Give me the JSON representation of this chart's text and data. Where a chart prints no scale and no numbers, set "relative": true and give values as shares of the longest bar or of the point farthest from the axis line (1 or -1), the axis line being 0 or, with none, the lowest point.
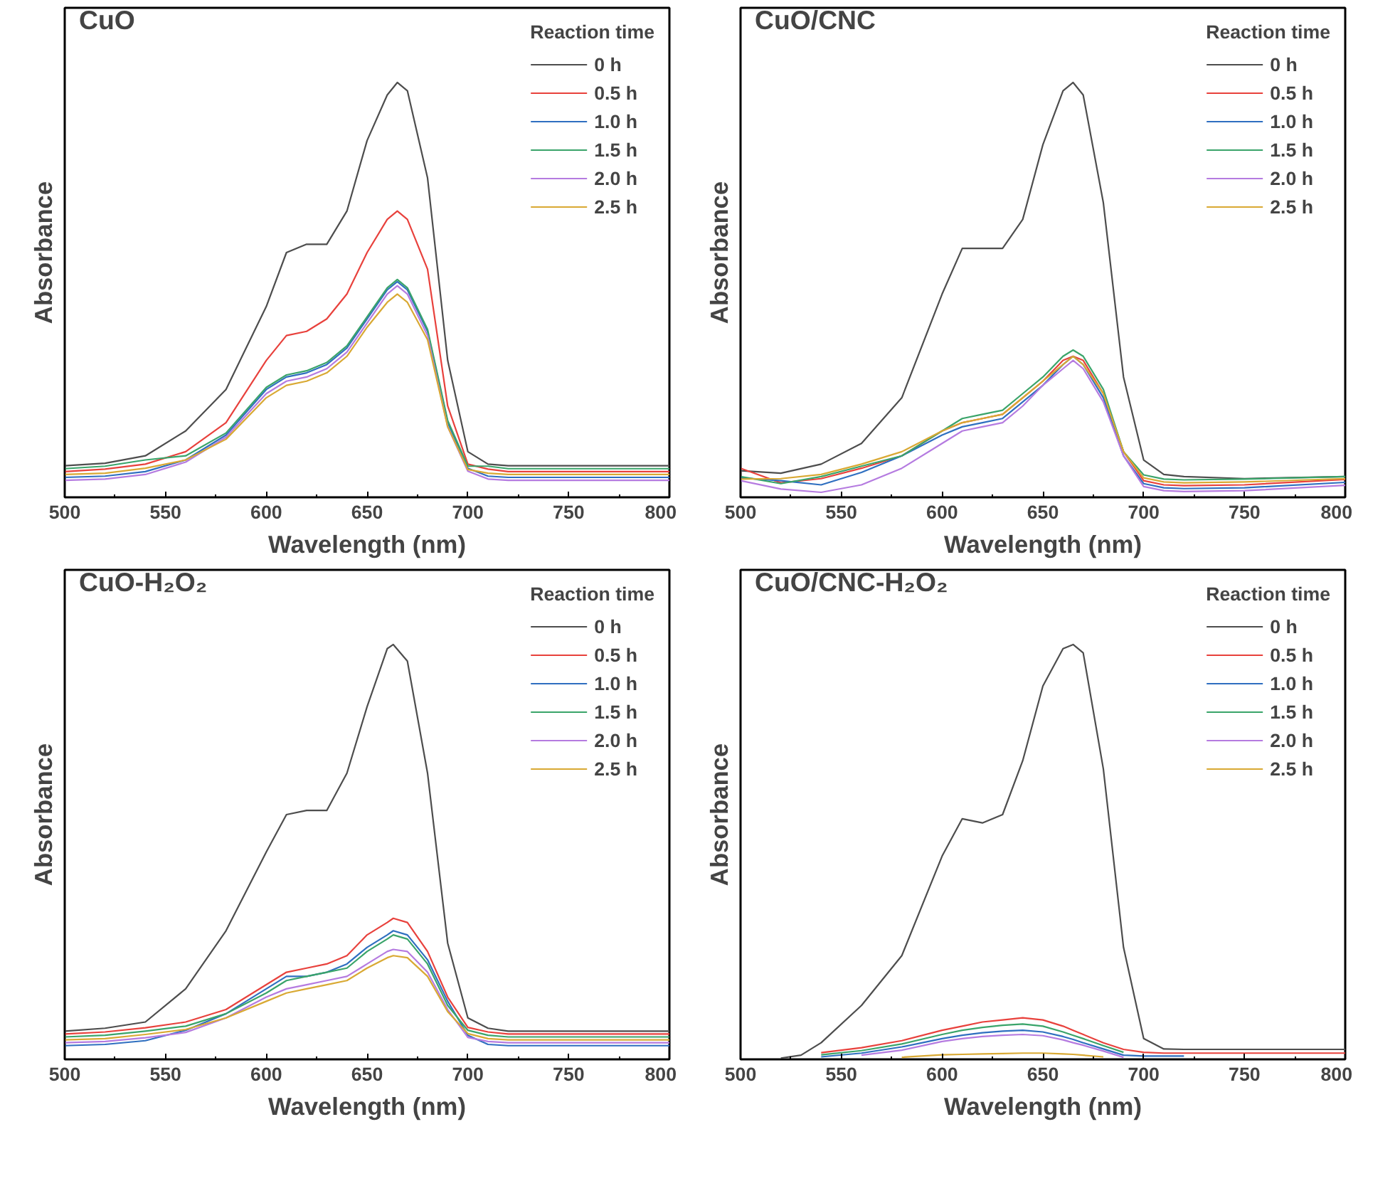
{
  "chart_data": [
    {
      "type": "line",
      "title": "CuO",
      "xlabel": "Wavelength (nm)",
      "ylabel": "Absorbance",
      "relative": true,
      "legend": "top right",
      "legend_title": "Reaction time",
      "tick_labels": "x",
      "xlim": [
        500,
        800
      ],
      "xticks": [
        500,
        550,
        600,
        650,
        700,
        750,
        800
      ],
      "x": [
        500,
        520,
        540,
        560,
        580,
        600,
        610,
        620,
        630,
        640,
        650,
        660,
        665,
        670,
        680,
        690,
        700,
        710,
        720,
        750,
        800
      ],
      "series": [
        {
          "name": "0 h",
          "color": "#4d4d4d",
          "values": [
            0.076,
            0.082,
            0.1,
            0.16,
            0.26,
            0.46,
            0.59,
            0.61,
            0.61,
            0.69,
            0.86,
            0.97,
            1.0,
            0.98,
            0.77,
            0.33,
            0.11,
            0.08,
            0.076,
            0.076,
            0.076
          ]
        },
        {
          "name": "0.5 h",
          "color": "#e8413c",
          "values": [
            0.062,
            0.068,
            0.08,
            0.11,
            0.18,
            0.33,
            0.39,
            0.4,
            0.43,
            0.49,
            0.59,
            0.67,
            0.69,
            0.67,
            0.55,
            0.22,
            0.08,
            0.068,
            0.062,
            0.062,
            0.062
          ]
        },
        {
          "name": "1.0 h",
          "color": "#2f6fc0",
          "values": [
            0.048,
            0.051,
            0.062,
            0.09,
            0.15,
            0.26,
            0.29,
            0.3,
            0.32,
            0.36,
            0.43,
            0.5,
            0.52,
            0.5,
            0.4,
            0.18,
            0.07,
            0.051,
            0.048,
            0.048,
            0.048
          ]
        },
        {
          "name": "1.5 h",
          "color": "#3aa46a",
          "values": [
            0.069,
            0.075,
            0.09,
            0.1,
            0.155,
            0.265,
            0.295,
            0.305,
            0.325,
            0.365,
            0.435,
            0.505,
            0.525,
            0.505,
            0.405,
            0.185,
            0.075,
            0.075,
            0.069,
            0.069,
            0.069
          ]
        },
        {
          "name": "2.0 h",
          "color": "#b57be0",
          "values": [
            0.041,
            0.044,
            0.055,
            0.085,
            0.145,
            0.25,
            0.28,
            0.29,
            0.31,
            0.35,
            0.42,
            0.49,
            0.51,
            0.49,
            0.39,
            0.17,
            0.063,
            0.044,
            0.041,
            0.041,
            0.041
          ]
        },
        {
          "name": "2.5 h",
          "color": "#d9a933",
          "values": [
            0.055,
            0.058,
            0.07,
            0.09,
            0.14,
            0.24,
            0.27,
            0.28,
            0.3,
            0.34,
            0.41,
            0.47,
            0.49,
            0.47,
            0.38,
            0.17,
            0.067,
            0.058,
            0.055,
            0.055,
            0.055
          ]
        }
      ]
    },
    {
      "type": "line",
      "title": "CuO/CNC",
      "xlabel": "Wavelength (nm)",
      "ylabel": "Absorbance",
      "relative": true,
      "legend": "top right",
      "legend_title": "Reaction time",
      "tick_labels": "x",
      "xlim": [
        500,
        800
      ],
      "xticks": [
        500,
        550,
        600,
        650,
        700,
        750,
        800
      ],
      "x": [
        500,
        520,
        540,
        560,
        580,
        600,
        610,
        620,
        630,
        640,
        650,
        660,
        665,
        670,
        680,
        690,
        700,
        710,
        720,
        750,
        800
      ],
      "series": [
        {
          "name": "0 h",
          "color": "#4d4d4d",
          "values": [
            0.064,
            0.058,
            0.08,
            0.13,
            0.24,
            0.49,
            0.6,
            0.6,
            0.6,
            0.67,
            0.85,
            0.98,
            1.0,
            0.97,
            0.71,
            0.29,
            0.09,
            0.055,
            0.05,
            0.045,
            0.05
          ]
        },
        {
          "name": "0.5 h",
          "color": "#e8413c",
          "values": [
            0.07,
            0.035,
            0.045,
            0.07,
            0.1,
            0.16,
            0.18,
            0.19,
            0.2,
            0.24,
            0.28,
            0.33,
            0.34,
            0.33,
            0.25,
            0.11,
            0.04,
            0.03,
            0.028,
            0.03,
            0.043
          ]
        },
        {
          "name": "1.0 h",
          "color": "#2f6fc0",
          "values": [
            0.047,
            0.04,
            0.03,
            0.06,
            0.1,
            0.15,
            0.17,
            0.18,
            0.19,
            0.23,
            0.27,
            0.32,
            0.34,
            0.32,
            0.24,
            0.1,
            0.033,
            0.023,
            0.021,
            0.023,
            0.036
          ]
        },
        {
          "name": "1.5 h",
          "color": "#3aa46a",
          "values": [
            0.05,
            0.033,
            0.05,
            0.075,
            0.1,
            0.16,
            0.19,
            0.2,
            0.21,
            0.25,
            0.29,
            0.34,
            0.355,
            0.34,
            0.26,
            0.11,
            0.054,
            0.044,
            0.042,
            0.044,
            0.05
          ]
        },
        {
          "name": "2.0 h",
          "color": "#b57be0",
          "values": [
            0.04,
            0.02,
            0.012,
            0.03,
            0.07,
            0.13,
            0.16,
            0.17,
            0.18,
            0.22,
            0.27,
            0.31,
            0.33,
            0.31,
            0.23,
            0.1,
            0.026,
            0.016,
            0.014,
            0.016,
            0.029
          ]
        },
        {
          "name": "2.5 h",
          "color": "#d9a933",
          "values": [
            0.044,
            0.045,
            0.055,
            0.08,
            0.11,
            0.16,
            0.18,
            0.19,
            0.2,
            0.24,
            0.28,
            0.32,
            0.34,
            0.32,
            0.25,
            0.11,
            0.047,
            0.037,
            0.035,
            0.037,
            0.045
          ]
        }
      ]
    },
    {
      "type": "line",
      "title": "CuO-H₂O₂",
      "xlabel": "Wavelength (nm)",
      "ylabel": "Absorbance",
      "relative": true,
      "legend": "top right",
      "legend_title": "Reaction time",
      "tick_labels": "x",
      "xlim": [
        500,
        800
      ],
      "xticks": [
        500,
        550,
        600,
        650,
        700,
        750,
        800
      ],
      "x": [
        500,
        520,
        540,
        560,
        580,
        600,
        610,
        620,
        630,
        640,
        650,
        660,
        663,
        670,
        680,
        690,
        700,
        710,
        720,
        750,
        800
      ],
      "series": [
        {
          "name": "0 h",
          "color": "#4d4d4d",
          "values": [
            0.068,
            0.075,
            0.09,
            0.17,
            0.31,
            0.5,
            0.59,
            0.6,
            0.6,
            0.69,
            0.85,
            0.99,
            1.0,
            0.96,
            0.69,
            0.28,
            0.1,
            0.075,
            0.068,
            0.068,
            0.068
          ]
        },
        {
          "name": "0.5 h",
          "color": "#e8413c",
          "values": [
            0.061,
            0.066,
            0.076,
            0.09,
            0.12,
            0.18,
            0.21,
            0.22,
            0.23,
            0.25,
            0.3,
            0.33,
            0.34,
            0.33,
            0.26,
            0.15,
            0.077,
            0.066,
            0.061,
            0.061,
            0.061
          ]
        },
        {
          "name": "1.0 h",
          "color": "#2f6fc0",
          "values": [
            0.033,
            0.036,
            0.045,
            0.07,
            0.11,
            0.17,
            0.2,
            0.2,
            0.21,
            0.23,
            0.27,
            0.3,
            0.31,
            0.3,
            0.24,
            0.14,
            0.058,
            0.036,
            0.033,
            0.033,
            0.033
          ]
        },
        {
          "name": "1.5 h",
          "color": "#3aa46a",
          "values": [
            0.054,
            0.058,
            0.068,
            0.08,
            0.11,
            0.16,
            0.19,
            0.2,
            0.21,
            0.22,
            0.26,
            0.29,
            0.3,
            0.29,
            0.23,
            0.13,
            0.07,
            0.058,
            0.054,
            0.054,
            0.054
          ]
        },
        {
          "name": "2.0 h",
          "color": "#b57be0",
          "values": [
            0.04,
            0.043,
            0.052,
            0.065,
            0.1,
            0.15,
            0.17,
            0.18,
            0.19,
            0.2,
            0.23,
            0.26,
            0.265,
            0.26,
            0.21,
            0.12,
            0.053,
            0.043,
            0.04,
            0.04,
            0.04
          ]
        },
        {
          "name": "2.5 h",
          "color": "#d9a933",
          "values": [
            0.047,
            0.05,
            0.06,
            0.072,
            0.1,
            0.14,
            0.16,
            0.17,
            0.18,
            0.19,
            0.22,
            0.245,
            0.25,
            0.245,
            0.2,
            0.115,
            0.062,
            0.05,
            0.047,
            0.047,
            0.047
          ]
        }
      ]
    },
    {
      "type": "line",
      "title": "CuO/CNC-H₂O₂",
      "xlabel": "Wavelength (nm)",
      "ylabel": "Absorbance",
      "relative": true,
      "legend": "top right",
      "legend_title": "Reaction time",
      "tick_labels": "x",
      "xlim": [
        500,
        800
      ],
      "xticks": [
        500,
        550,
        600,
        650,
        700,
        750,
        800
      ],
      "x": [
        520,
        530,
        540,
        560,
        580,
        600,
        610,
        620,
        630,
        640,
        650,
        660,
        665,
        670,
        680,
        690,
        700,
        710,
        720,
        750,
        780,
        800
      ],
      "series": [
        {
          "name": "0 h",
          "color": "#4d4d4d",
          "values": [
            0.003,
            0.01,
            0.04,
            0.13,
            0.25,
            0.49,
            0.58,
            0.57,
            0.59,
            0.72,
            0.9,
            0.99,
            1.0,
            0.98,
            0.7,
            0.27,
            0.05,
            0.025,
            0.024,
            0.024,
            0.024,
            0.024
          ]
        },
        {
          "name": "0.5 h",
          "color": "#e8413c",
          "values": [
            null,
            null,
            0.016,
            0.028,
            0.045,
            0.07,
            0.08,
            0.09,
            0.095,
            0.1,
            0.095,
            0.08,
            0.07,
            0.06,
            0.04,
            0.024,
            0.017,
            0.015,
            0.015,
            0.015,
            0.015,
            0.015
          ]
        },
        {
          "name": "1.0 h",
          "color": "#2f6fc0",
          "values": [
            null,
            null,
            0.006,
            0.015,
            0.03,
            0.05,
            0.058,
            0.064,
            0.068,
            0.07,
            0.066,
            0.055,
            0.048,
            0.04,
            0.025,
            0.01,
            0.008,
            0.008,
            0.008,
            null,
            null,
            null
          ]
        },
        {
          "name": "1.5 h",
          "color": "#3aa46a",
          "values": [
            null,
            null,
            0.011,
            0.021,
            0.037,
            0.06,
            0.07,
            0.077,
            0.082,
            0.085,
            0.08,
            0.066,
            0.058,
            0.05,
            0.033,
            0.017,
            null,
            null,
            null,
            null,
            null,
            null
          ]
        },
        {
          "name": "2.0 h",
          "color": "#b57be0",
          "values": [
            null,
            null,
            null,
            0.01,
            0.022,
            0.043,
            0.05,
            0.055,
            0.058,
            0.06,
            0.057,
            0.047,
            0.04,
            0.034,
            0.02,
            0.005,
            null,
            null,
            null,
            null,
            null,
            null
          ]
        },
        {
          "name": "2.5 h",
          "color": "#d9a933",
          "values": [
            null,
            null,
            null,
            null,
            0.005,
            0.011,
            0.012,
            0.013,
            0.014,
            0.015,
            0.015,
            0.013,
            0.012,
            0.01,
            0.006,
            null,
            null,
            null,
            null,
            null,
            null,
            null
          ]
        }
      ]
    }
  ]
}
